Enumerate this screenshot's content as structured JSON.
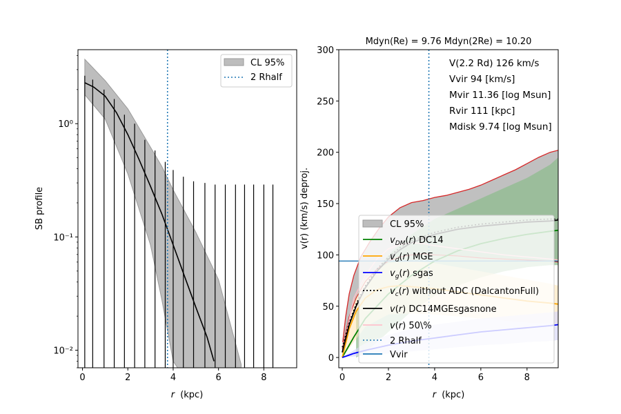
{
  "chart_data": [
    {
      "type": "line",
      "panel": "left",
      "xlabel": "r (kpc)",
      "xlabel_italic_part": "r",
      "xlabel_unit": "(kpc)",
      "ylabel": "SB profile",
      "yscale": "log",
      "xlim": [
        -0.2,
        9.45
      ],
      "ylim": [
        0.007,
        4.5
      ],
      "x_ticks": [
        0,
        2,
        4,
        6,
        8
      ],
      "y_ticks": [
        {
          "value": 1,
          "label": "10⁰"
        },
        {
          "value": 0.1,
          "label": "10⁻¹"
        },
        {
          "value": 0.01,
          "label": "10⁻²"
        }
      ],
      "legend": {
        "location": "top-right",
        "entries": [
          "CL 95%",
          "2 Rhalf"
        ]
      },
      "band_color": "#bdbdbd",
      "band_edge_color": "#9a9a9a",
      "rhalf2_x": 3.75,
      "rhalf_color": "#1f77b4",
      "model": {
        "x": [
          0.1,
          0.5,
          1.0,
          1.5,
          2.0,
          2.5,
          3.0,
          3.5,
          4.0,
          4.5,
          5.0,
          5.5,
          5.8
        ],
        "y": [
          2.3,
          2.1,
          1.75,
          1.25,
          0.8,
          0.48,
          0.28,
          0.16,
          0.085,
          0.045,
          0.024,
          0.013,
          0.008
        ]
      },
      "band": {
        "x": [
          0.1,
          1.0,
          2.0,
          3.0,
          3.5,
          4.0,
          5.0,
          6.0,
          7.0
        ],
        "upper": [
          3.7,
          2.4,
          1.35,
          0.62,
          0.42,
          0.26,
          0.11,
          0.042,
          0.0075
        ],
        "lower": [
          1.8,
          1.1,
          0.36,
          0.085,
          0.028,
          0.008,
          0.004,
          0.004,
          0.004
        ]
      },
      "error_bars": {
        "x": [
          0.1,
          0.45,
          0.95,
          1.4,
          1.85,
          2.3,
          2.75,
          3.2,
          3.65,
          4.0,
          4.45,
          4.9,
          5.4,
          5.85,
          6.3,
          6.75,
          7.15,
          7.55,
          8.0,
          8.4
        ],
        "upper": [
          2.65,
          2.45,
          2.0,
          1.65,
          1.2,
          1.0,
          0.72,
          0.58,
          0.46,
          0.39,
          0.34,
          0.31,
          0.3,
          0.29,
          0.29,
          0.29,
          0.29,
          0.29,
          0.29,
          0.29
        ]
      }
    },
    {
      "type": "line",
      "panel": "right",
      "title": "Mdyn(Re) = 9.76  Mdyn(2Re) = 10.20",
      "xlabel": "r (kpc)",
      "xlabel_italic_part": "r",
      "xlabel_unit": "(kpc)",
      "ylabel": "v(r) (km/s) deproj.",
      "xlim": [
        -0.15,
        9.35
      ],
      "ylim": [
        -10,
        300
      ],
      "x_ticks": [
        0,
        2,
        4,
        6,
        8
      ],
      "y_ticks": [
        0,
        50,
        100,
        150,
        200,
        250,
        300
      ],
      "annotations": [
        "V(2.2 Rd) 126 km/s",
        "Vvir 94 [km/s]",
        "Mvir 11.36 [log Msun]",
        "Rvir 111 [kpc]",
        "Mdisk 9.74 [log Msun]"
      ],
      "legend": {
        "location": "center-right",
        "entries": [
          {
            "label": "CL 95%",
            "style": "patch",
            "color": "#bdbdbd"
          },
          {
            "label": "v_DM(r) DC14",
            "style": "line",
            "color": "#008000"
          },
          {
            "label": "v_d(r) MGE",
            "style": "line",
            "color": "#ffa500"
          },
          {
            "label": "v_g(r) sgas",
            "style": "line",
            "color": "#0000ff"
          },
          {
            "label": "v_c(r) without ADC (DalcantonFull)",
            "style": "dotted",
            "color": "#000000"
          },
          {
            "label": "v(r) DC14MGEsgasnone",
            "style": "line",
            "color": "#000000"
          },
          {
            "label": "v(r) 50\\%",
            "style": "line",
            "color": "#ffc0cb"
          },
          {
            "label": "2 Rhalf",
            "style": "dotted",
            "color": "#1f77b4"
          },
          {
            "label": "Vvir",
            "style": "line",
            "color": "#1f77b4"
          }
        ]
      },
      "rhalf2_x": 3.75,
      "vvir": 94,
      "series": [
        {
          "key": "total_upper",
          "color": "#d62728",
          "x": [
            0.02,
            0.15,
            0.3,
            0.5,
            0.8,
            1.2,
            1.6,
            2.0,
            2.5,
            3.0,
            3.5,
            4.0,
            4.5,
            5.0,
            5.5,
            6.0,
            6.5,
            7.0,
            7.5,
            8.0,
            8.5,
            9.0,
            9.35
          ],
          "y": [
            15,
            40,
            62,
            80,
            98,
            113,
            126,
            137,
            146,
            151,
            153,
            156,
            158,
            161,
            164,
            168,
            173,
            178,
            183,
            189,
            195,
            200,
            202
          ]
        },
        {
          "key": "total_lower",
          "color": "#d62728",
          "x": [
            0.0,
            0.3,
            0.6,
            1.0,
            1.5,
            2.0,
            2.5,
            3.0,
            3.5,
            4.0,
            5.0,
            6.0,
            7.0,
            8.0,
            9.0,
            9.35
          ],
          "y": [
            8,
            40,
            58,
            74,
            86,
            94,
            98,
            100,
            101,
            100,
            99,
            97,
            96,
            95,
            94,
            93
          ]
        },
        {
          "key": "dm",
          "color": "#008000",
          "x": [
            0.0,
            0.5,
            1.0,
            2.0,
            3.0,
            4.0,
            5.0,
            6.0,
            7.0,
            8.0,
            9.0,
            9.35
          ],
          "y": [
            0,
            20,
            38,
            62,
            80,
            94,
            104,
            111,
            116,
            120,
            123,
            124
          ]
        },
        {
          "key": "disk",
          "color": "#ffa500",
          "x": [
            0.0,
            0.3,
            0.6,
            1.0,
            1.5,
            2.0,
            2.5,
            3.0,
            4.0,
            5.0,
            6.0,
            7.0,
            8.0,
            9.0,
            9.35
          ],
          "y": [
            0,
            28,
            45,
            58,
            66,
            69,
            70,
            69,
            67,
            64,
            61,
            58,
            55,
            53,
            52
          ]
        },
        {
          "key": "gas",
          "color": "#0000ff",
          "x": [
            0.0,
            0.5,
            1.0,
            2.0,
            3.0,
            4.0,
            5.0,
            6.0,
            7.0,
            8.0,
            9.0,
            9.35
          ],
          "y": [
            0,
            4,
            7,
            12,
            16,
            19,
            22,
            25,
            27,
            29,
            31,
            32
          ]
        },
        {
          "key": "vc_noadc",
          "color": "#000000",
          "x": [
            0.0,
            0.3,
            0.6,
            1.0,
            1.5,
            2.0,
            2.5,
            3.0,
            4.0,
            5.0,
            6.0,
            7.0,
            8.0,
            9.0,
            9.35
          ],
          "y": [
            10,
            34,
            52,
            70,
            86,
            98,
            107,
            114,
            122,
            127,
            130,
            132,
            134,
            135,
            135
          ]
        },
        {
          "key": "total",
          "color": "#000000",
          "x": [
            0.0,
            0.3,
            0.6,
            1.0,
            1.5,
            2.0,
            2.5,
            3.0,
            4.0,
            5.0,
            6.0,
            7.0,
            8.0,
            9.0,
            9.35
          ],
          "y": [
            5,
            32,
            50,
            68,
            84,
            96,
            105,
            112,
            120,
            125,
            128,
            130,
            132,
            133,
            134
          ]
        },
        {
          "key": "total_50",
          "color": "#ffc0cb",
          "x": [
            0.0,
            0.5,
            1.0,
            1.5,
            2.0,
            2.5,
            3.0,
            3.5,
            4.0,
            5.0,
            6.0,
            7.0,
            8.0,
            9.0,
            9.35
          ],
          "y": [
            5,
            58,
            80,
            96,
            106,
            110,
            112,
            111,
            109,
            106,
            103,
            100,
            98,
            96,
            95
          ]
        }
      ],
      "dm_band": {
        "color": "#8fbc8f",
        "x": [
          0.6,
          1.0,
          2.0,
          3.0,
          4.0,
          5.0,
          6.0,
          7.0,
          8.0,
          9.0,
          9.35
        ],
        "upper": [
          44,
          70,
          100,
          120,
          135,
          145,
          155,
          165,
          175,
          188,
          195
        ],
        "lower": [
          0,
          5,
          25,
          45,
          60,
          70,
          78,
          84,
          88,
          90,
          90
        ]
      },
      "disk_band": {
        "color": "#ffe4b5",
        "x": [
          0.0,
          0.5,
          1.0,
          2.0,
          3.0,
          4.0,
          5.0,
          6.0,
          7.0,
          8.0,
          9.0,
          9.35
        ],
        "upper": [
          0,
          55,
          78,
          92,
          94,
          92,
          88,
          84,
          80,
          76,
          72,
          70
        ],
        "lower": [
          0,
          15,
          30,
          42,
          43,
          42,
          40,
          38,
          36,
          34,
          33,
          32
        ]
      },
      "gas_band": {
        "color": "#d8d8f8",
        "x": [
          0.0,
          1.0,
          2.0,
          3.0,
          4.0,
          5.0,
          6.0,
          7.0,
          8.0,
          9.0,
          9.35
        ],
        "upper": [
          0,
          14,
          22,
          28,
          32,
          35,
          38,
          40,
          42,
          44,
          45
        ],
        "lower": [
          0,
          2,
          4,
          6,
          8,
          10,
          12,
          13,
          15,
          16,
          17
        ]
      }
    }
  ]
}
